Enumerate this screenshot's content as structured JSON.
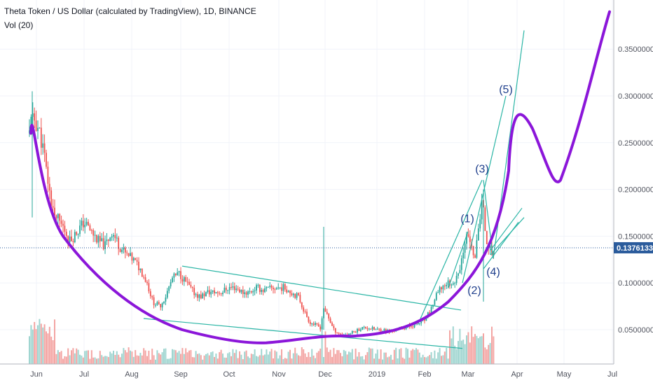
{
  "chart_data": {
    "type": "candlestick",
    "title": "Theta Token / US Dollar (calculated by TradingView), 1D, BINANCE",
    "indicator_label": "Vol (20)",
    "x_ticks": [
      "Jun",
      "Jul",
      "Aug",
      "Sep",
      "Oct",
      "Nov",
      "Dec",
      "2019",
      "Feb",
      "Mar",
      "Apr",
      "May",
      "Jul"
    ],
    "y_ticks": [
      "0.05000000",
      "0.10000000",
      "0.15000000",
      "0.20000000",
      "0.25000000",
      "0.30000000",
      "0.35000000"
    ],
    "ylim": [
      0.0,
      0.39
    ],
    "last_price": "0.13761332",
    "wave_labels": [
      "(1)",
      "(2)",
      "(3)",
      "(4)",
      "(5)"
    ],
    "grid": true,
    "colors": {
      "up": "#26a69a",
      "down": "#ef5350",
      "vol_up": "#9fd5d0",
      "vol_down": "#f3a5a3",
      "projection": "#8b16d9",
      "trendline": "#2ab5a5",
      "price_tag": "#2a5b9c",
      "wave_text": "#1f3f8c"
    }
  }
}
